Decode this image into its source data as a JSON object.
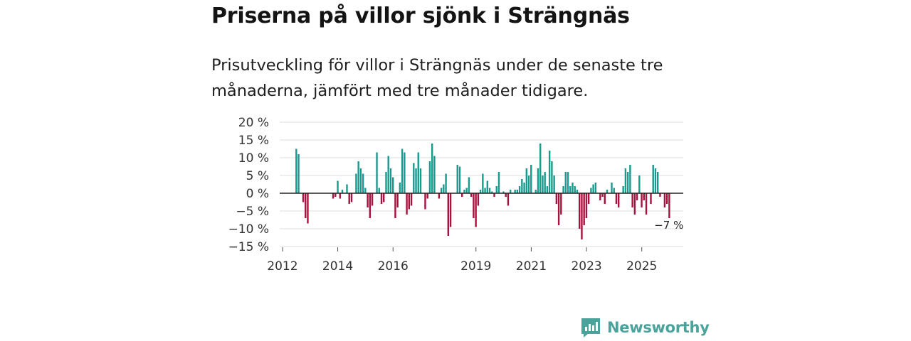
{
  "header": {
    "title": "Priserna på villor sjönk i Strängnäs",
    "subtitle": "Prisutveckling för villor i Strängnäs under de senaste tre månaderna, jämfört med tre månader tidigare."
  },
  "colors": {
    "positive": "#1a9a8e",
    "negative": "#a8123e",
    "grid": "#dddddd",
    "zero_line": "#222222",
    "brand": "#4aa39a"
  },
  "brand": {
    "name": "Newsworthy",
    "icon": "newsworthy-logo-icon"
  },
  "chart_data": {
    "type": "bar",
    "title": "Priserna på villor sjönk i Strängnäs",
    "xlabel": "",
    "ylabel": "",
    "ylim": [
      -15,
      20
    ],
    "yticks": [
      20,
      15,
      10,
      5,
      0,
      -5,
      -10,
      -15
    ],
    "ytick_labels": [
      "20 %",
      "15 %",
      "10 %",
      "5 %",
      "0 %",
      "−5 %",
      "−10 %",
      "−15 %"
    ],
    "xlim": [
      2011.9,
      2026.5
    ],
    "xticks": [
      2012,
      2014,
      2016,
      2019,
      2021,
      2023,
      2025
    ],
    "xtick_labels": [
      "2012",
      "2014",
      "2016",
      "2019",
      "2021",
      "2023",
      "2025"
    ],
    "grid": true,
    "annotation": {
      "label": "−7 %",
      "value": -7
    },
    "start": 2012.5,
    "step": 0.0833,
    "values": [
      12.5,
      11,
      0,
      -2.5,
      -7,
      -8.5,
      0,
      0,
      0,
      0,
      0,
      0,
      0,
      0,
      0,
      0,
      -1.5,
      -1,
      3.5,
      -1.5,
      1,
      0,
      2.5,
      -3,
      -2.5,
      0,
      5.5,
      9,
      7,
      5.5,
      1.5,
      -4,
      -7,
      -3.5,
      0,
      11.5,
      1.5,
      -3,
      -2.5,
      6,
      10.5,
      7,
      4.5,
      -7,
      -4,
      3,
      12.5,
      11.5,
      -6,
      -4.5,
      -3.5,
      8.5,
      7,
      11.5,
      7,
      0,
      -4.5,
      -1.5,
      9,
      14,
      10.5,
      0,
      -1.5,
      1.5,
      2.5,
      5.5,
      -12,
      -9.5,
      0,
      0,
      8,
      7.5,
      -1,
      1,
      1.5,
      4.5,
      -1,
      -7,
      -9.5,
      -3.5,
      1,
      5.5,
      1.5,
      3.5,
      1.5,
      0.5,
      -1,
      2,
      6,
      0,
      0.5,
      -1,
      -3.5,
      1,
      0,
      1,
      1,
      2,
      4,
      3,
      7,
      5,
      8,
      0,
      1,
      7,
      14,
      5,
      6,
      2,
      12,
      9,
      5,
      -3,
      -9,
      -6,
      2,
      6,
      6,
      2,
      3,
      2,
      1,
      -10,
      -13,
      -9,
      -7,
      -3,
      1.5,
      2.5,
      3,
      0,
      -2,
      -1,
      -3,
      1,
      0,
      3,
      1.5,
      -3,
      -4,
      0,
      2,
      7,
      6,
      8,
      -4,
      -6,
      -2,
      5,
      -4,
      -2,
      -6,
      0,
      -3,
      8,
      7,
      6,
      -1,
      0,
      -4,
      -3,
      -7
    ]
  }
}
